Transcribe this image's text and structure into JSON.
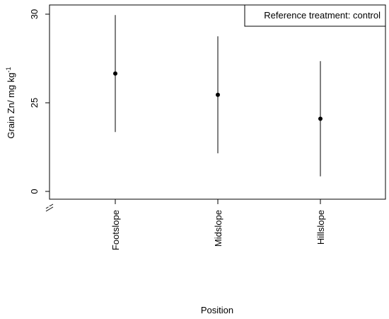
{
  "chart_data": {
    "type": "scatter",
    "subtype": "point-with-error-bars",
    "categories": [
      "Footslope",
      "Midslope",
      "Hillslope"
    ],
    "series": [
      {
        "points": [
          {
            "x": "Footslope",
            "y": 26.65,
            "lower": 23.35,
            "upper": 29.95
          },
          {
            "x": "Midslope",
            "y": 25.45,
            "lower": 22.15,
            "upper": 28.75
          },
          {
            "x": "Hillslope",
            "y": 24.1,
            "lower": 20.85,
            "upper": 27.35
          }
        ]
      }
    ],
    "xlabel": "Position",
    "ylabel_main": "Grain Zn/ mg kg",
    "ylabel_superscript": "-1",
    "y_ticks": [
      {
        "value": 30,
        "label": "30"
      },
      {
        "value": 25,
        "label": "25"
      },
      {
        "value": 0,
        "label": "0"
      }
    ],
    "ylim": [
      20,
      30
    ],
    "axis_break": {
      "from": 0,
      "to": 20
    },
    "legend": {
      "text": "Reference treatment: control",
      "placement": "top-right"
    },
    "grid": false,
    "box": true
  }
}
